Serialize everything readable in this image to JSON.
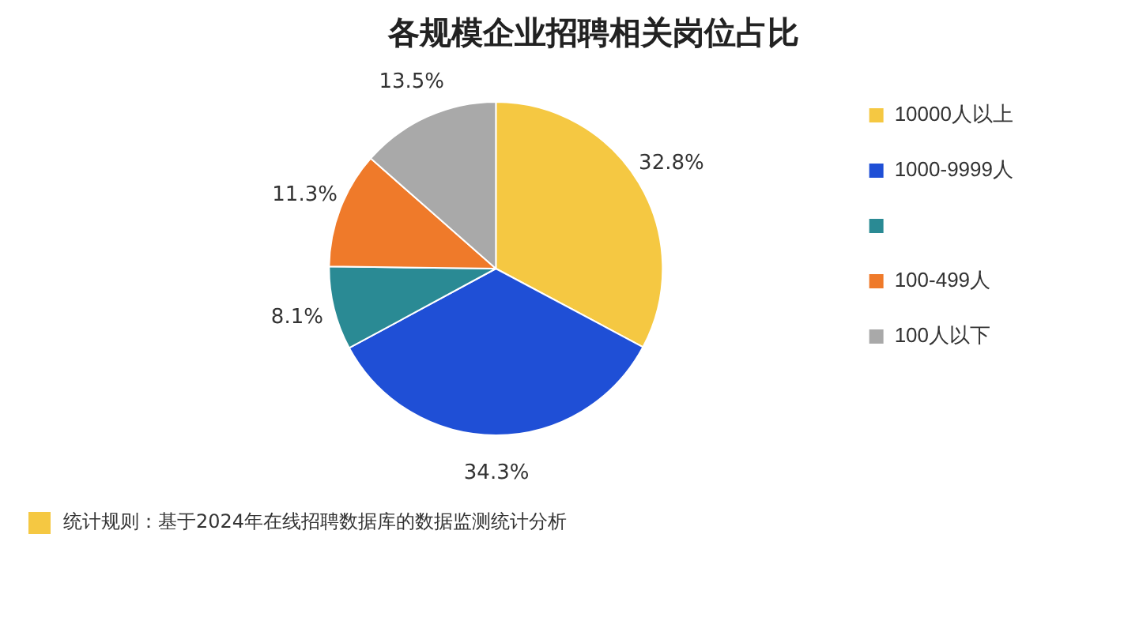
{
  "chart_data": {
    "type": "pie",
    "title": "各规模企业招聘相关岗位占比",
    "categories": [
      "10000人以上",
      "1000-9999人",
      null,
      "100-499人",
      "100人以下"
    ],
    "values": [
      32.8,
      34.3,
      8.1,
      11.3,
      13.5
    ],
    "colors": [
      "#f5c842",
      "#1f4fd6",
      "#2a8a94",
      "#ef7a2a",
      "#a9a9a9"
    ],
    "value_labels": [
      "32.8%",
      "34.3%",
      "8.1%",
      "11.3%",
      "13.5%"
    ],
    "legend": "right",
    "annotations": [
      "统计规则：基于2024年在线招聘数据库的数据监测统计分析"
    ]
  }
}
